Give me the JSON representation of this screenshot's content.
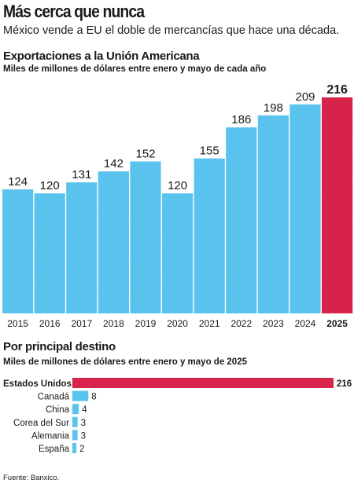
{
  "header": {
    "title": "Más cerca que nunca",
    "subtitle": "México vende a EU el doble de mercancías que hace una década."
  },
  "colors": {
    "blue": "#5bc4ee",
    "red": "#d8234a",
    "dark": "#1a1a1a"
  },
  "chart_data": [
    {
      "type": "bar",
      "title": "Exportaciones a la Unión Americana",
      "subtitle": "Miles de millones de dólares entre enero y mayo de cada año",
      "categories": [
        "2015",
        "2016",
        "2017",
        "2018",
        "2019",
        "2020",
        "2021",
        "2022",
        "2023",
        "2024",
        "2025"
      ],
      "values": [
        124,
        120,
        131,
        142,
        152,
        120,
        155,
        186,
        198,
        209,
        216
      ],
      "highlight": "2025",
      "grid": false,
      "legend": "none"
    },
    {
      "type": "bar",
      "orientation": "horizontal",
      "title": "Por principal destino",
      "subtitle": "Miles de millones de dólares entre enero y mayo de 2025",
      "categories": [
        "Estados Unidos",
        "Canadá",
        "China",
        "Corea del Sur",
        "Alemania",
        "España"
      ],
      "values": [
        216,
        8,
        4,
        3,
        3,
        2
      ],
      "highlight": "Estados Unidos",
      "grid": false,
      "legend": "none"
    }
  ],
  "footer": {
    "source": "Fuente: Banxico."
  }
}
